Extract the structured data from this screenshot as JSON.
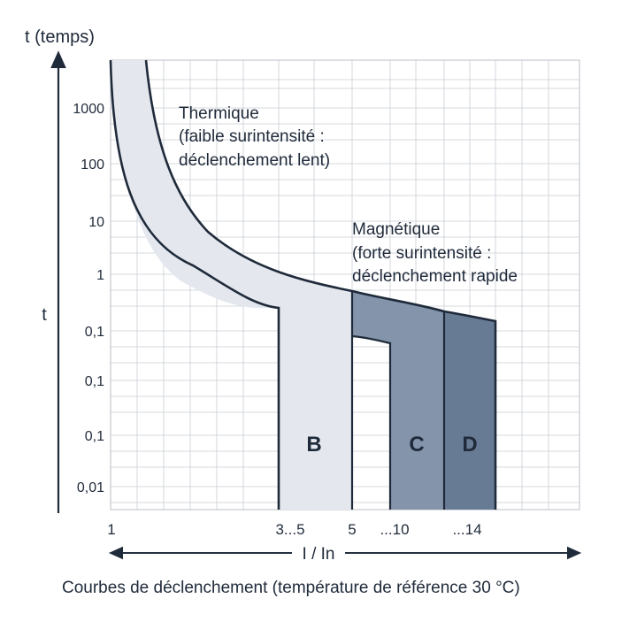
{
  "chart_data": {
    "type": "area",
    "title": "",
    "caption": "Courbes de déclenchement (température de référence 30 °C)",
    "y_axis_title": "t (temps)",
    "y_side_label": "t",
    "x_axis_label": "I / In",
    "y_scale": "log",
    "y_tick_labels": [
      "1000",
      "100",
      "10",
      "1",
      "0,1",
      "0,1",
      "0,1",
      "0,01"
    ],
    "x_tick_labels": [
      "1",
      "3...5",
      "5",
      "...10",
      "...14"
    ],
    "grid": true,
    "annotations": [
      {
        "name": "thermique",
        "lines": [
          "Thermique",
          "(faible surintensité :",
          "déclenchement lent)"
        ]
      },
      {
        "name": "magnetique",
        "lines": [
          "Magnétique",
          "(forte surintensité :",
          "déclenchement rapide"
        ]
      }
    ],
    "series": [
      {
        "name": "B",
        "range_in": [
          3,
          5
        ],
        "color": "#e4e8ee"
      },
      {
        "name": "C",
        "range_in": [
          5,
          10
        ],
        "color": "#8394ab"
      },
      {
        "name": "D",
        "range_in": [
          10,
          14
        ],
        "color": "#687b95"
      }
    ]
  },
  "colors": {
    "line": "#1f2a3a",
    "grid": "#c9cdd3",
    "band_light": "#e4e8ee",
    "band_c": "#8394ab",
    "band_d": "#687b95"
  }
}
